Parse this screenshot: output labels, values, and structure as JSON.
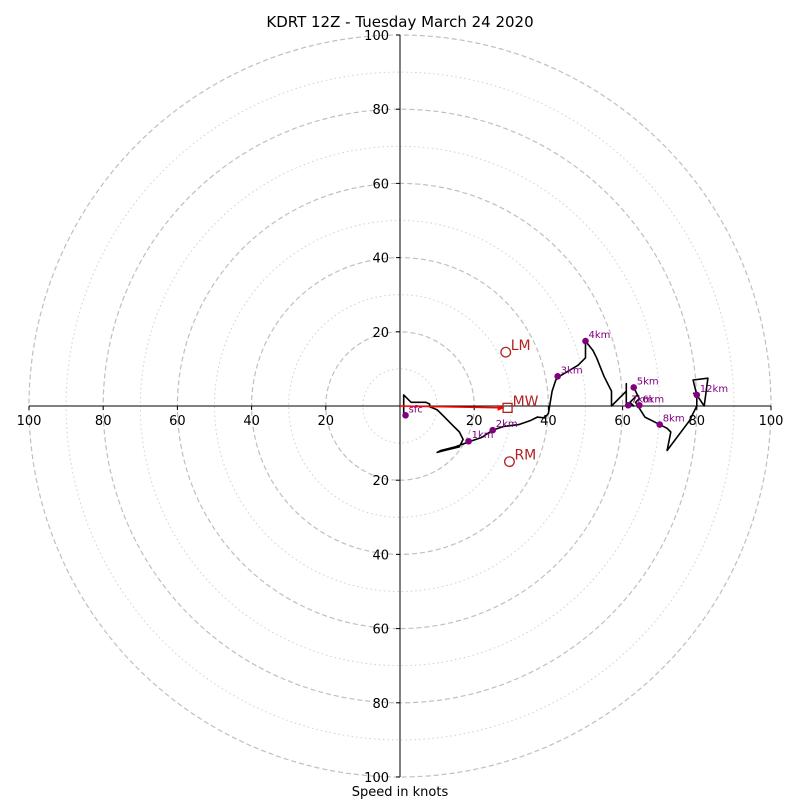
{
  "chart_data": {
    "type": "hodograph",
    "title": "KDRT 12Z - Tuesday March 24 2020",
    "xlabel": "Speed in knots",
    "range": [
      -100,
      100
    ],
    "ring_step_dashed": 20,
    "ring_step_dotted": 10,
    "axis_ticks": [
      "100",
      "80",
      "60",
      "40",
      "20",
      "20",
      "40",
      "60",
      "80",
      "100"
    ],
    "axis_tick_values": [
      -100,
      -80,
      -60,
      -40,
      -20,
      20,
      40,
      60,
      80,
      100
    ],
    "y_ticks": [
      "100",
      "80",
      "60",
      "40",
      "20",
      "20",
      "40",
      "60",
      "80",
      "100"
    ],
    "y_tick_values": [
      100,
      80,
      60,
      40,
      20,
      -20,
      -40,
      -60,
      -80,
      -100
    ],
    "trace_color": "#000000",
    "height_color": "#800080",
    "motion_color": "#b22222",
    "mean_wind_arrow_color": "#ff0000",
    "trace": [
      [
        1,
        -3
      ],
      [
        1,
        3
      ],
      [
        3,
        1
      ],
      [
        7,
        1
      ],
      [
        8,
        0.5
      ],
      [
        8,
        -0.2
      ],
      [
        10,
        -1
      ],
      [
        12,
        -3
      ],
      [
        14,
        -5
      ],
      [
        16,
        -7
      ],
      [
        17,
        -9
      ],
      [
        16,
        -11
      ],
      [
        12,
        -12
      ],
      [
        10,
        -12.5
      ],
      [
        11,
        -12
      ],
      [
        15,
        -11
      ],
      [
        19,
        -9.5
      ],
      [
        22,
        -8.5
      ],
      [
        25,
        -6.5
      ],
      [
        28,
        -5.5
      ],
      [
        32,
        -5
      ],
      [
        35,
        -4
      ],
      [
        37,
        -3
      ],
      [
        39,
        -3.2
      ],
      [
        40,
        -2
      ],
      [
        41,
        4
      ],
      [
        42,
        7
      ],
      [
        43,
        8
      ],
      [
        48,
        11
      ],
      [
        50,
        13
      ],
      [
        50,
        17.5
      ],
      [
        52,
        15
      ],
      [
        53,
        13
      ],
      [
        55,
        8
      ],
      [
        57,
        4
      ],
      [
        57,
        0
      ],
      [
        59,
        2
      ],
      [
        61,
        4
      ],
      [
        61,
        6
      ],
      [
        61,
        0.5
      ],
      [
        63,
        0
      ],
      [
        62,
        1
      ],
      [
        64,
        3
      ],
      [
        63,
        5
      ],
      [
        64.5,
        2
      ],
      [
        63.5,
        1
      ],
      [
        66,
        -3
      ],
      [
        68,
        -4
      ],
      [
        70,
        -5
      ],
      [
        72,
        -6
      ],
      [
        73,
        -7
      ],
      [
        72,
        -12
      ],
      [
        78,
        -4
      ],
      [
        80,
        0
      ],
      [
        80,
        3
      ],
      [
        79,
        7
      ],
      [
        83,
        7.5
      ],
      [
        82,
        0
      ],
      [
        80,
        3
      ],
      [
        79,
        3.5
      ]
    ],
    "heights": [
      {
        "label": "sfc",
        "x": 1.5,
        "y": -2.5
      },
      {
        "label": "1km",
        "x": 18.5,
        "y": -9.5
      },
      {
        "label": "2km",
        "x": 25,
        "y": -6.5
      },
      {
        "label": "3km",
        "x": 42.5,
        "y": 8
      },
      {
        "label": "4km",
        "x": 50,
        "y": 17.5
      },
      {
        "label": "5km",
        "x": 63,
        "y": 5
      },
      {
        "label": "6km",
        "x": 64.5,
        "y": 0.2
      },
      {
        "label": "7km",
        "x": 61.5,
        "y": 0.2
      },
      {
        "label": "8km",
        "x": 70,
        "y": -5
      },
      {
        "label": "12km",
        "x": 80,
        "y": 3
      }
    ],
    "storm_motion": [
      {
        "label": "LM",
        "x": 28.5,
        "y": 14.5,
        "marker": "circle"
      },
      {
        "label": "MW",
        "x": 29,
        "y": -0.5,
        "marker": "square"
      },
      {
        "label": "RM",
        "x": 29.5,
        "y": -15,
        "marker": "circle"
      }
    ]
  }
}
